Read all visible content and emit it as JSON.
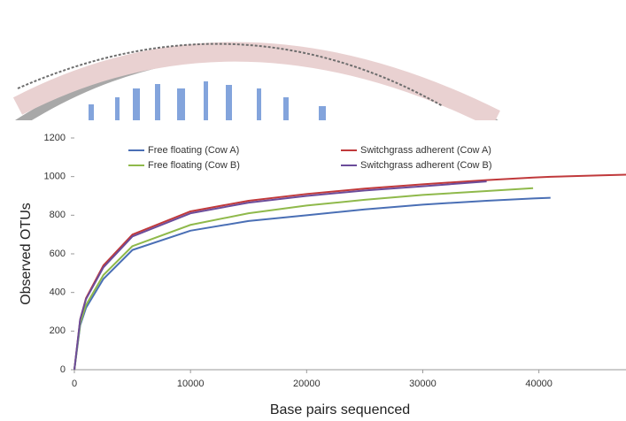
{
  "chart_data": {
    "type": "line",
    "x_label": "Base pairs sequenced",
    "y_label": "Observed OTUs",
    "x": [
      0,
      500,
      1000,
      2500,
      5000,
      10000,
      15000,
      20000,
      25000,
      30000,
      35500,
      39500,
      41000,
      45000,
      47500
    ],
    "series": [
      {
        "name": "Free floating (Cow A)",
        "color": "#4a6fb5",
        "values": [
          0,
          230,
          320,
          470,
          620,
          720,
          770,
          800,
          830,
          855,
          875,
          887,
          890,
          null,
          null
        ]
      },
      {
        "name": "Switchgrass adherent (Cow A)",
        "color": "#c0393b",
        "values": [
          0,
          260,
          370,
          540,
          700,
          820,
          875,
          910,
          938,
          960,
          982,
          995,
          999,
          1006,
          1010
        ]
      },
      {
        "name": "Free floating (Cow B)",
        "color": "#8fb94b",
        "values": [
          0,
          240,
          335,
          490,
          640,
          750,
          810,
          850,
          880,
          905,
          925,
          940,
          null,
          null,
          null
        ]
      },
      {
        "name": "Switchgrass adherent (Cow B)",
        "color": "#6b4c9a",
        "values": [
          0,
          260,
          365,
          530,
          690,
          810,
          865,
          900,
          928,
          950,
          975,
          null,
          null,
          null,
          null
        ]
      }
    ],
    "xlim": [
      0,
      47500
    ],
    "xticks": [
      0,
      10000,
      20000,
      30000,
      40000
    ],
    "ylim": [
      0,
      1200
    ],
    "yticks": [
      0,
      200,
      400,
      600,
      800,
      1000,
      1200
    ]
  }
}
